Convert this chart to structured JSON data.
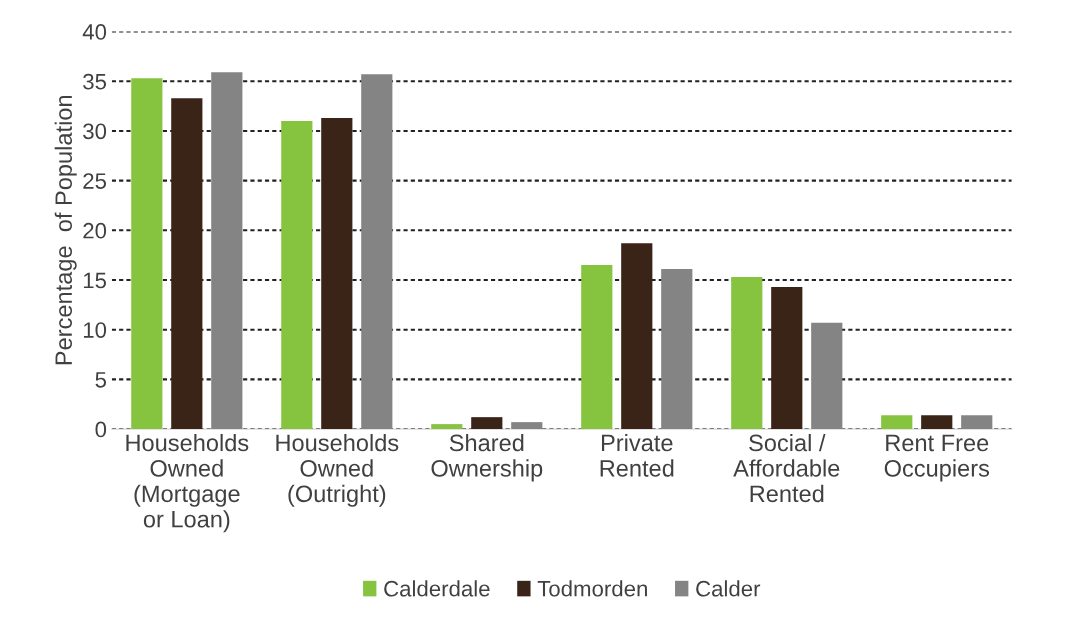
{
  "chart_data": {
    "type": "bar",
    "ylabel": "Percentage  of Population",
    "categories": [
      "Households\nOwned\n(Mortgage\nor Loan)",
      "Households\nOwned\n(Outright)",
      "Shared\nOwnership",
      "Private\nRented",
      "Social /\nAffordable\nRented",
      "Rent Free\nOccupiers"
    ],
    "series": [
      {
        "name": "Calderdale",
        "color": "#86c440",
        "values": [
          35.3,
          31.0,
          0.5,
          16.5,
          15.3,
          1.4
        ]
      },
      {
        "name": "Todmorden",
        "color": "#3a2418",
        "values": [
          33.3,
          31.3,
          1.2,
          18.7,
          14.3,
          1.4
        ]
      },
      {
        "name": "Calder",
        "color": "#848484",
        "values": [
          35.9,
          35.7,
          0.7,
          16.1,
          10.7,
          1.4
        ]
      }
    ],
    "ylim": [
      0,
      40
    ],
    "yticks": [
      0,
      5,
      10,
      15,
      20,
      25,
      30,
      35,
      40
    ],
    "grid": "y",
    "legend": "bottom"
  }
}
